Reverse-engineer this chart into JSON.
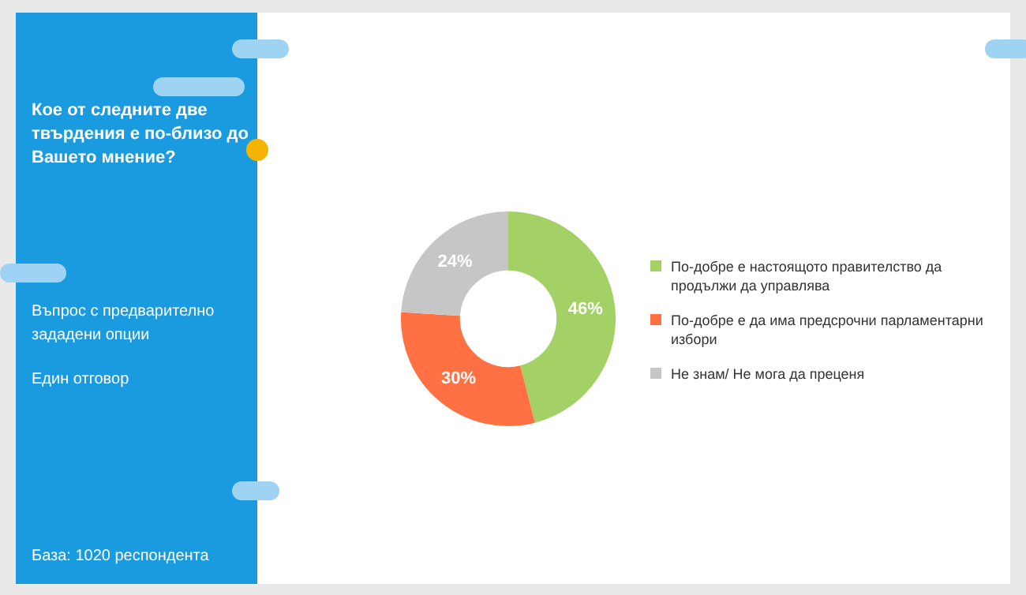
{
  "chart_data": {
    "type": "donut",
    "title": "Кое от следните две твърдения е по-близо до Вашето мнение?",
    "categories": [
      "По-добре е настоящото правителство да продължи да управлява",
      "По-добре е да има предсрочни парламентарни избори",
      "Не знам/ Не мога да преценя"
    ],
    "values": [
      46,
      30,
      24
    ],
    "colors": [
      "#a3d165",
      "#ff7043",
      "#c6c6c6"
    ],
    "value_labels": [
      "46%",
      "30%",
      "24%"
    ],
    "legend": "right",
    "annotations": [
      "Въпрос с предварително зададени опции",
      "Един отговор",
      "База:  1020 респондента"
    ]
  }
}
